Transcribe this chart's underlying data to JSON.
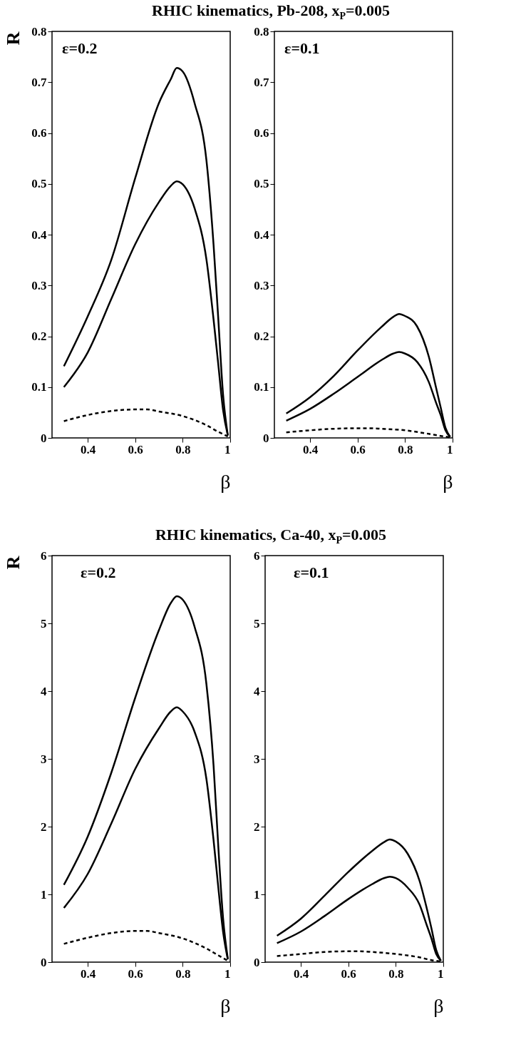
{
  "chart_data": [
    {
      "type": "line",
      "title": "RHIC kinematics, Pb-208, x$_{P}$=0.005",
      "ylabel": "R",
      "xlabel": "β",
      "annotations": [
        "ε=0.2"
      ],
      "xlim": [
        0.25,
        1
      ],
      "xticks": [
        0.4,
        0.6,
        0.8,
        1
      ],
      "ylim": [
        0,
        0.8
      ],
      "yticks": [
        0,
        0.1,
        0.2,
        0.3,
        0.4,
        0.5,
        0.6,
        0.7,
        0.8
      ],
      "grid": false,
      "marker": "none",
      "series": [
        {
          "color": "#000000",
          "line_style": "solid",
          "x": [
            0.3,
            0.4,
            0.5,
            0.6,
            0.7,
            0.75,
            0.775,
            0.8,
            0.85,
            0.9,
            0.93,
            0.95,
            0.97,
            0.99
          ],
          "values": [
            0.141,
            0.239,
            0.351,
            0.511,
            0.659,
            0.706,
            0.728,
            0.721,
            0.659,
            0.546,
            0.38,
            0.233,
            0.085,
            0.005
          ]
        },
        {
          "color": "#000000",
          "line_style": "solid",
          "x": [
            0.3,
            0.4,
            0.5,
            0.6,
            0.7,
            0.75,
            0.775,
            0.8,
            0.85,
            0.9,
            0.93,
            0.95,
            0.97,
            0.99
          ],
          "values": [
            0.1,
            0.168,
            0.274,
            0.381,
            0.464,
            0.496,
            0.505,
            0.499,
            0.452,
            0.351,
            0.233,
            0.144,
            0.055,
            0.005
          ]
        },
        {
          "color": "#000000",
          "line_style": "dashed",
          "x": [
            0.3,
            0.4,
            0.5,
            0.6,
            0.65,
            0.7,
            0.8,
            0.9,
            0.95,
            0.99
          ],
          "values": [
            0.033,
            0.045,
            0.053,
            0.056,
            0.056,
            0.052,
            0.043,
            0.025,
            0.012,
            0.003
          ]
        }
      ]
    },
    {
      "type": "line",
      "xlabel": "β",
      "annotations": [
        "ε=0.1"
      ],
      "xlim": [
        0.25,
        1
      ],
      "xticks": [
        0.4,
        0.6,
        0.8,
        1
      ],
      "ylim": [
        0,
        0.8
      ],
      "yticks": [
        0,
        0.1,
        0.2,
        0.3,
        0.4,
        0.5,
        0.6,
        0.7,
        0.8
      ],
      "grid": false,
      "marker": "none",
      "series": [
        {
          "color": "#000000",
          "line_style": "solid",
          "x": [
            0.3,
            0.4,
            0.5,
            0.6,
            0.7,
            0.75,
            0.775,
            0.8,
            0.85,
            0.9,
            0.93,
            0.95,
            0.97,
            0.99
          ],
          "values": [
            0.048,
            0.08,
            0.122,
            0.172,
            0.218,
            0.238,
            0.244,
            0.24,
            0.22,
            0.16,
            0.1,
            0.06,
            0.02,
            0.002
          ]
        },
        {
          "color": "#000000",
          "line_style": "solid",
          "x": [
            0.3,
            0.4,
            0.5,
            0.6,
            0.7,
            0.75,
            0.775,
            0.8,
            0.85,
            0.9,
            0.93,
            0.95,
            0.97,
            0.99
          ],
          "values": [
            0.034,
            0.057,
            0.087,
            0.12,
            0.153,
            0.166,
            0.169,
            0.166,
            0.15,
            0.11,
            0.07,
            0.045,
            0.015,
            0.002
          ]
        },
        {
          "color": "#000000",
          "line_style": "dashed",
          "x": [
            0.3,
            0.4,
            0.5,
            0.6,
            0.65,
            0.7,
            0.8,
            0.9,
            0.95,
            0.99
          ],
          "values": [
            0.011,
            0.015,
            0.018,
            0.019,
            0.019,
            0.018,
            0.015,
            0.008,
            0.004,
            0.001
          ]
        }
      ]
    },
    {
      "type": "line",
      "title": "RHIC kinematics, Ca-40, x$_{P}$=0.005",
      "ylabel": "R",
      "xlabel": "β",
      "annotations": [
        "ε=0.2"
      ],
      "xlim": [
        0.25,
        1
      ],
      "xticks": [
        0.4,
        0.6,
        0.8,
        1
      ],
      "ylim": [
        0,
        6
      ],
      "yticks": [
        0,
        1,
        2,
        3,
        4,
        5,
        6
      ],
      "grid": false,
      "marker": "none",
      "series": [
        {
          "color": "#000000",
          "line_style": "solid",
          "x": [
            0.3,
            0.4,
            0.5,
            0.6,
            0.7,
            0.75,
            0.775,
            0.8,
            0.85,
            0.9,
            0.93,
            0.95,
            0.97,
            0.99
          ],
          "values": [
            1.14,
            1.85,
            2.8,
            3.9,
            4.9,
            5.3,
            5.4,
            5.35,
            4.95,
            4.1,
            2.9,
            1.7,
            0.65,
            0.05
          ]
        },
        {
          "color": "#000000",
          "line_style": "solid",
          "x": [
            0.3,
            0.4,
            0.5,
            0.6,
            0.7,
            0.75,
            0.775,
            0.8,
            0.85,
            0.9,
            0.93,
            0.95,
            0.97,
            0.99
          ],
          "values": [
            0.8,
            1.3,
            2.05,
            2.85,
            3.45,
            3.7,
            3.76,
            3.7,
            3.4,
            2.7,
            1.8,
            1.1,
            0.45,
            0.04
          ]
        },
        {
          "color": "#000000",
          "line_style": "dashed",
          "x": [
            0.3,
            0.4,
            0.5,
            0.6,
            0.65,
            0.7,
            0.8,
            0.9,
            0.95,
            0.99
          ],
          "values": [
            0.27,
            0.36,
            0.43,
            0.46,
            0.46,
            0.43,
            0.35,
            0.2,
            0.1,
            0.02
          ]
        }
      ]
    },
    {
      "type": "line",
      "xlabel": "β",
      "annotations": [
        "ε=0.1"
      ],
      "xlim": [
        0.25,
        1
      ],
      "xticks": [
        0.4,
        0.6,
        0.8,
        1
      ],
      "ylim": [
        0,
        6
      ],
      "yticks": [
        0,
        1,
        2,
        3,
        4,
        5,
        6
      ],
      "grid": false,
      "marker": "none",
      "series": [
        {
          "color": "#000000",
          "line_style": "solid",
          "x": [
            0.3,
            0.4,
            0.5,
            0.6,
            0.7,
            0.75,
            0.775,
            0.8,
            0.85,
            0.9,
            0.93,
            0.95,
            0.97,
            0.99
          ],
          "values": [
            0.39,
            0.64,
            0.98,
            1.33,
            1.64,
            1.77,
            1.81,
            1.78,
            1.6,
            1.2,
            0.8,
            0.5,
            0.18,
            0.02
          ]
        },
        {
          "color": "#000000",
          "line_style": "solid",
          "x": [
            0.3,
            0.4,
            0.5,
            0.6,
            0.7,
            0.75,
            0.775,
            0.8,
            0.85,
            0.9,
            0.93,
            0.95,
            0.97,
            0.99
          ],
          "values": [
            0.28,
            0.45,
            0.68,
            0.93,
            1.15,
            1.24,
            1.26,
            1.24,
            1.1,
            0.85,
            0.55,
            0.35,
            0.12,
            0.02
          ]
        },
        {
          "color": "#000000",
          "line_style": "dashed",
          "x": [
            0.3,
            0.4,
            0.5,
            0.6,
            0.65,
            0.7,
            0.8,
            0.9,
            0.95,
            0.99
          ],
          "values": [
            0.09,
            0.12,
            0.15,
            0.16,
            0.16,
            0.15,
            0.12,
            0.07,
            0.03,
            0.01
          ]
        }
      ]
    }
  ]
}
